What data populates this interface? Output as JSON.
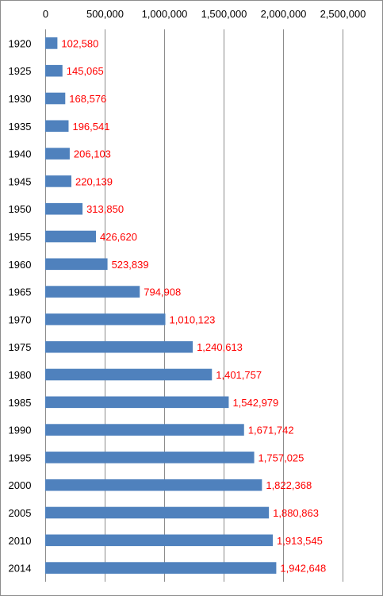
{
  "chart_data": {
    "type": "bar",
    "orientation": "horizontal",
    "title": "",
    "xlabel": "",
    "ylabel": "",
    "categories": [
      "1920",
      "1925",
      "1930",
      "1935",
      "1940",
      "1945",
      "1950",
      "1955",
      "1960",
      "1965",
      "1970",
      "1975",
      "1980",
      "1985",
      "1990",
      "1995",
      "2000",
      "2005",
      "2010",
      "2014"
    ],
    "values": [
      102580,
      145065,
      168576,
      196541,
      206103,
      220139,
      313850,
      426620,
      523839,
      794908,
      1010123,
      1240613,
      1401757,
      1542979,
      1671742,
      1757025,
      1822368,
      1880863,
      1913545,
      1942648
    ],
    "value_labels": [
      "102,580",
      "145,065",
      "168,576",
      "196,541",
      "206,103",
      "220,139",
      "313,850",
      "426,620",
      "523,839",
      "794,908",
      "1,010,123",
      "1,240,613",
      "1,401,757",
      "1,542,979",
      "1,671,742",
      "1,757,025",
      "1,822,368",
      "1,880,863",
      "1,913,545",
      "1,942,648"
    ],
    "xlim": [
      0,
      2500000
    ],
    "x_ticks": [
      0,
      500000,
      1000000,
      1500000,
      2000000,
      2500000
    ],
    "x_tick_labels": [
      "0",
      "500,000",
      "1,000,000",
      "1,500,000",
      "2,000,000",
      "2,500,000"
    ],
    "x_axis_position": "top",
    "grid": true,
    "legend": "none",
    "colors": {
      "bar": "#4f81bd",
      "data_label": "#ff0000",
      "grid": "#8c8c8c"
    }
  }
}
